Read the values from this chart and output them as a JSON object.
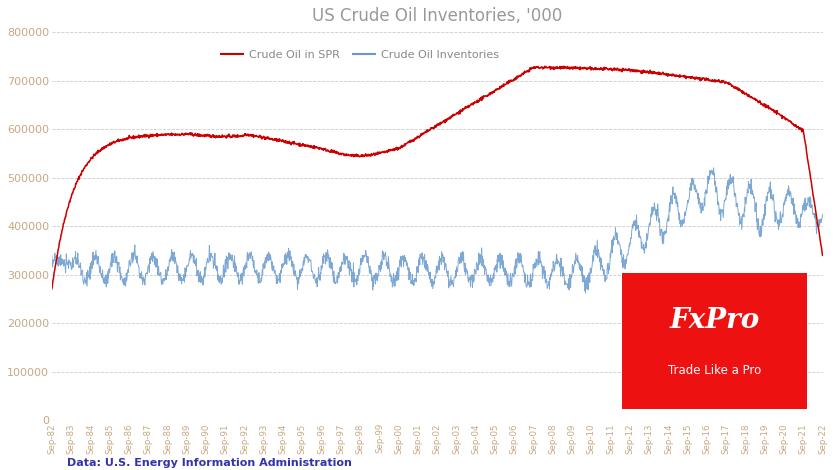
{
  "title": "US Crude Oil Inventories, '000",
  "title_color": "#999999",
  "title_fontsize": 12,
  "ylim": [
    0,
    800000
  ],
  "yticks": [
    0,
    100000,
    200000,
    300000,
    400000,
    500000,
    600000,
    700000,
    800000
  ],
  "ytick_color": "#c8a882",
  "background_color": "#ffffff",
  "grid_color": "#cccccc",
  "spr_color": "#cc0000",
  "inv_color": "#6699cc",
  "legend_spr": "Crude Oil in SPR",
  "legend_inv": "Crude Oil Inventories",
  "legend_color": "#888888",
  "source_text": "Data: U.S. Energy Information Administration",
  "source_color": "#3333aa",
  "fxpro_bg": "#ee1111",
  "fxpro_text": "FxPro",
  "fxpro_sub": "Trade Like a Pro",
  "start_year": 1982,
  "end_year": 2022
}
